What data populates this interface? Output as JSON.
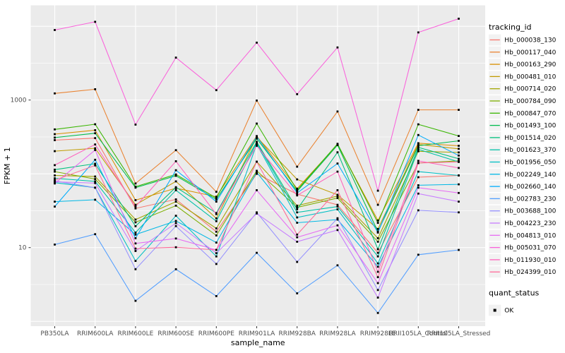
{
  "colors": {
    "panel_background": "#EBEBEB",
    "gridline": "#FFFFFF",
    "tick_text": "#4D4D4D",
    "axis_text": "#000000",
    "point": "#000000",
    "legend_key_background": "#F2F2F2"
  },
  "chart_data": {
    "type": "line",
    "xlabel": "sample_name",
    "ylabel": "FPKM + 1",
    "y_scale": "log10",
    "y_tick_labels": [
      "1000",
      "10"
    ],
    "y_tick_values": [
      1000,
      10
    ],
    "y_major_gridlines": [
      1,
      10,
      100,
      1000,
      10000
    ],
    "y_minor_gridlines": [
      3.162,
      31.62,
      316.2,
      3162
    ],
    "ylim_log": [
      -0.1,
      4.3
    ],
    "grid": "on",
    "legend_position": "right",
    "categories": [
      "PB350LA",
      "RRIM600LA",
      "RRIM600LE",
      "RRIM600SE",
      "RRIM600PE",
      "RRIM901LA",
      "RRIM928BA",
      "RRIM928LA",
      "RRIM928LE",
      "RRII105LA_Control",
      "RRII105LA_Stressed"
    ],
    "legend_title": "tracking_id",
    "quant_legend": {
      "title": "quant_status",
      "items": [
        {
          "label": "OK",
          "marker": "black-square"
        }
      ]
    },
    "series": [
      {
        "name": "Hb_000038_130",
        "color": "#F8766D",
        "values": [
          286,
          305,
          34,
          45,
          16.4,
          100,
          53,
          38,
          8.5,
          90,
          95
        ]
      },
      {
        "name": "Hb_000117_040",
        "color": "#EA8331",
        "values": [
          1230,
          1400,
          74,
          209,
          57,
          985,
          125,
          700,
          38,
          736,
          736
        ]
      },
      {
        "name": "Hb_000163_290",
        "color": "#D89000",
        "values": [
          345,
          390,
          44,
          64,
          49,
          325,
          63,
          250,
          23.3,
          260,
          240
        ]
      },
      {
        "name": "Hb_000481_010",
        "color": "#C09B00",
        "values": [
          203,
          222,
          38,
          79,
          24.9,
          315,
          84,
          52,
          17.9,
          250,
          218
        ]
      },
      {
        "name": "Hb_000714_020",
        "color": "#A3A500",
        "values": [
          95,
          92,
          24,
          42,
          18.2,
          146,
          37,
          50,
          13.4,
          202,
          195
        ]
      },
      {
        "name": "Hb_000784_090",
        "color": "#7CAE00",
        "values": [
          107,
          85,
          22,
          37,
          14.6,
          110,
          35,
          47,
          12,
          140,
          150
        ]
      },
      {
        "name": "Hb_000847_070",
        "color": "#39B600",
        "values": [
          400,
          470,
          67,
          98,
          47,
          480,
          60,
          255,
          21.6,
          469,
          326
        ]
      },
      {
        "name": "Hb_001493_100",
        "color": "#00BB4E",
        "values": [
          310,
          355,
          65,
          94,
          45,
          300,
          58,
          245,
          16.5,
          240,
          280
        ]
      },
      {
        "name": "Hb_001514_020",
        "color": "#00BF7D",
        "values": [
          114,
          137,
          19.5,
          66,
          29.4,
          272,
          33,
          196,
          9.5,
          228,
          160
        ]
      },
      {
        "name": "Hb_001623_370",
        "color": "#00C1A7",
        "values": [
          87,
          79,
          16,
          60,
          22.8,
          262,
          30,
          36,
          7.6,
          215,
          145
        ]
      },
      {
        "name": "Hb_001956_050",
        "color": "#00BFC4",
        "values": [
          76,
          65,
          6.6,
          27,
          7.6,
          252,
          25.6,
          33,
          6.1,
          107,
          95
        ]
      },
      {
        "name": "Hb_002249_140",
        "color": "#00B8E5",
        "values": [
          42,
          44.5,
          15,
          23,
          11.7,
          105,
          21.7,
          24,
          5.5,
          70,
          72
        ]
      },
      {
        "name": "Hb_002660_140",
        "color": "#00ACFC",
        "values": [
          36,
          155,
          13.4,
          112,
          42,
          320,
          55,
          138,
          16,
          336,
          177
        ]
      },
      {
        "name": "Hb_002783_230",
        "color": "#529EFF",
        "values": [
          11,
          15.2,
          1.9,
          5.1,
          2.2,
          8.5,
          2.4,
          5.75,
          1.3,
          8.0,
          9.3
        ]
      },
      {
        "name": "Hb_003688_100",
        "color": "#9590FF",
        "values": [
          80,
          65,
          5.1,
          19.6,
          6.0,
          30,
          6.4,
          25,
          2.66,
          32,
          30
        ]
      },
      {
        "name": "Hb_004223_230",
        "color": "#C77CFF",
        "values": [
          78,
          75,
          9.0,
          21.5,
          8.4,
          29,
          12,
          17.3,
          2.1,
          54,
          42
        ]
      },
      {
        "name": "Hb_004813_010",
        "color": "#E76BF3",
        "values": [
          74,
          210,
          11.4,
          13.3,
          9.3,
          60,
          13.8,
          20,
          3.3,
          65,
          55
        ]
      },
      {
        "name": "Hb_005031_070",
        "color": "#FA62DB",
        "values": [
          8900,
          11500,
          465,
          3760,
          1360,
          6000,
          1200,
          5160,
          59,
          8260,
          12660
        ]
      },
      {
        "name": "Hb_011930_010",
        "color": "#FF62BC",
        "values": [
          131,
          250,
          36,
          148,
          28.4,
          240,
          51,
          107,
          4.7,
          150,
          120
        ]
      },
      {
        "name": "Hb_024399_010",
        "color": "#FF6A98",
        "values": [
          82,
          130,
          9.7,
          10.1,
          9.3,
          146,
          15,
          60,
          3.97,
          140,
          145
        ]
      }
    ]
  }
}
